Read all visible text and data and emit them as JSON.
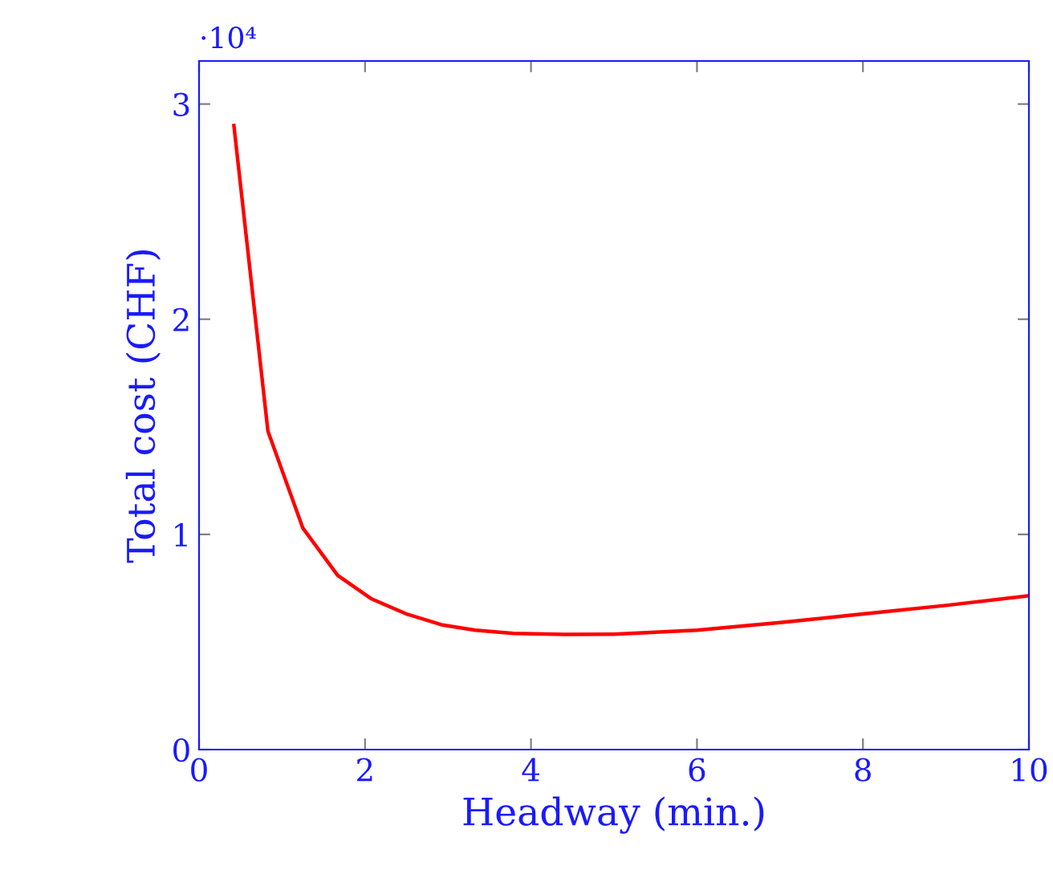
{
  "chart_data": {
    "type": "line",
    "xlabel": "Headway (min.)",
    "ylabel": "Total cost (CHF)",
    "x": [
      0.42,
      0.83,
      1.25,
      1.67,
      2.08,
      2.5,
      2.92,
      3.33,
      3.79,
      4.4,
      5,
      6,
      7,
      8,
      9,
      10
    ],
    "series": [
      {
        "color": "#ff0000",
        "values": [
          2.9,
          1.48,
          1.03,
          0.81,
          0.7,
          0.63,
          0.58,
          0.555,
          0.54,
          0.535,
          0.536,
          0.555,
          0.59,
          0.63,
          0.67,
          0.715
        ]
      }
    ],
    "xlim": [
      0,
      10
    ],
    "xticks": [
      0,
      2,
      4,
      6,
      8,
      10
    ],
    "ylim": [
      0,
      3.2
    ],
    "yticks": [
      0,
      1,
      2,
      3
    ],
    "annotations": [
      "·10⁴"
    ],
    "grid": false,
    "legend": false,
    "marker": "none",
    "line_style": "solid"
  }
}
